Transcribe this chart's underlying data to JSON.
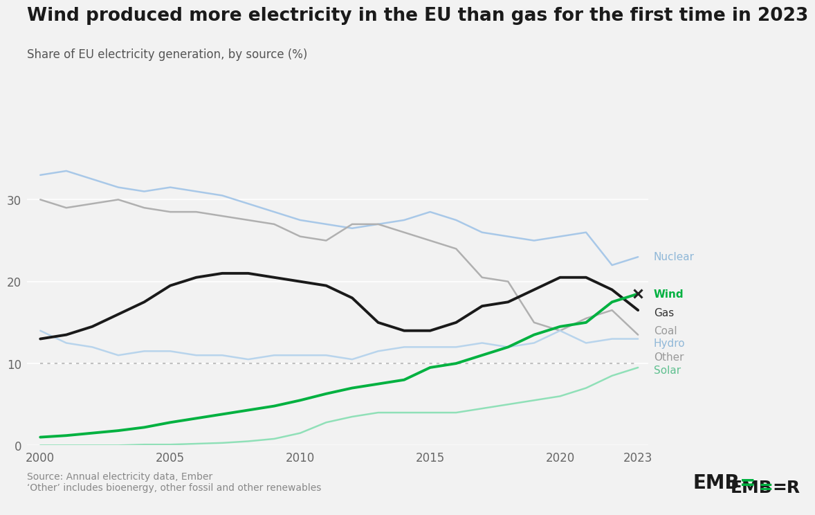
{
  "title": "Wind produced more electricity in the EU than gas for the first time in 2023",
  "subtitle": "Share of EU electricity generation, by source (%)",
  "source_text": "Source: Annual electricity data, Ember\n‘Other’ includes bioenergy, other fossil and other renewables",
  "background_color": "#f2f2f2",
  "years": [
    2000,
    2001,
    2002,
    2003,
    2004,
    2005,
    2006,
    2007,
    2008,
    2009,
    2010,
    2011,
    2012,
    2013,
    2014,
    2015,
    2016,
    2017,
    2018,
    2019,
    2020,
    2021,
    2022,
    2023
  ],
  "nuclear": [
    33.0,
    33.5,
    32.5,
    31.5,
    31.0,
    31.5,
    31.0,
    30.5,
    29.5,
    28.5,
    27.5,
    27.0,
    26.5,
    27.0,
    27.5,
    28.5,
    27.5,
    26.0,
    25.5,
    25.0,
    25.5,
    26.0,
    22.0,
    23.0
  ],
  "gas": [
    13.0,
    13.5,
    14.5,
    16.0,
    17.5,
    19.5,
    20.5,
    21.0,
    21.0,
    20.5,
    20.0,
    19.5,
    18.0,
    15.0,
    14.0,
    14.0,
    15.0,
    17.0,
    17.5,
    19.0,
    20.5,
    20.5,
    19.0,
    16.5
  ],
  "coal": [
    30.0,
    29.0,
    29.5,
    30.0,
    29.0,
    28.5,
    28.5,
    28.0,
    27.5,
    27.0,
    25.5,
    25.0,
    27.0,
    27.0,
    26.0,
    25.0,
    24.0,
    20.5,
    20.0,
    15.0,
    14.0,
    15.5,
    16.5,
    13.5
  ],
  "hydro": [
    14.0,
    12.5,
    12.0,
    11.0,
    11.5,
    11.5,
    11.0,
    11.0,
    10.5,
    11.0,
    11.0,
    11.0,
    10.5,
    11.5,
    12.0,
    12.0,
    12.0,
    12.5,
    12.0,
    12.5,
    14.0,
    12.5,
    13.0,
    13.0
  ],
  "other": [
    10.0,
    10.0,
    10.0,
    10.0,
    10.0,
    10.0,
    10.0,
    10.0,
    10.0,
    10.0,
    10.0,
    10.0,
    10.0,
    10.0,
    10.0,
    10.0,
    10.0,
    10.0,
    10.0,
    10.0,
    10.0,
    10.0,
    10.0,
    10.0
  ],
  "wind": [
    1.0,
    1.2,
    1.5,
    1.8,
    2.2,
    2.8,
    3.3,
    3.8,
    4.3,
    4.8,
    5.5,
    6.3,
    7.0,
    7.5,
    8.0,
    9.5,
    10.0,
    11.0,
    12.0,
    13.5,
    14.5,
    15.0,
    17.5,
    18.5
  ],
  "solar": [
    0.0,
    0.0,
    0.0,
    0.0,
    0.1,
    0.1,
    0.2,
    0.3,
    0.5,
    0.8,
    1.5,
    2.8,
    3.5,
    4.0,
    4.0,
    4.0,
    4.0,
    4.5,
    5.0,
    5.5,
    6.0,
    7.0,
    8.5,
    9.5
  ],
  "ylim": [
    0,
    37
  ],
  "yticks": [
    0,
    10,
    20,
    30
  ],
  "xticks": [
    2000,
    2005,
    2010,
    2015,
    2020,
    2023
  ],
  "colors": {
    "nuclear": "#a8c8e8",
    "gas": "#1a1a1a",
    "coal": "#b0b0b0",
    "hydro": "#b8d4ec",
    "other": "#c0c0c0",
    "wind": "#00b140",
    "solar": "#90e0b8"
  },
  "line_styles": {
    "nuclear": "solid",
    "gas": "solid",
    "coal": "solid",
    "hydro": "solid",
    "other": "dotted",
    "wind": "solid",
    "solar": "solid"
  },
  "line_widths": {
    "nuclear": 1.8,
    "gas": 2.8,
    "coal": 1.8,
    "hydro": 1.8,
    "other": 1.5,
    "wind": 2.8,
    "solar": 1.8
  },
  "labels": {
    "nuclear": "Nuclear",
    "gas": "Gas",
    "coal": "Coal",
    "hydro": "Hydro",
    "other": "Other",
    "wind": "Wind",
    "solar": "Solar"
  },
  "label_colors": {
    "nuclear": "#90b8d8",
    "gas": "#333333",
    "coal": "#999999",
    "hydro": "#90b8d8",
    "other": "#999999",
    "wind": "#00b140",
    "solar": "#60c090"
  },
  "label_positions_y": {
    "nuclear": 23.0,
    "wind": 18.5,
    "gas": 16.2,
    "coal": 14.0,
    "hydro": 12.5,
    "other": 10.8,
    "solar": 9.2
  }
}
